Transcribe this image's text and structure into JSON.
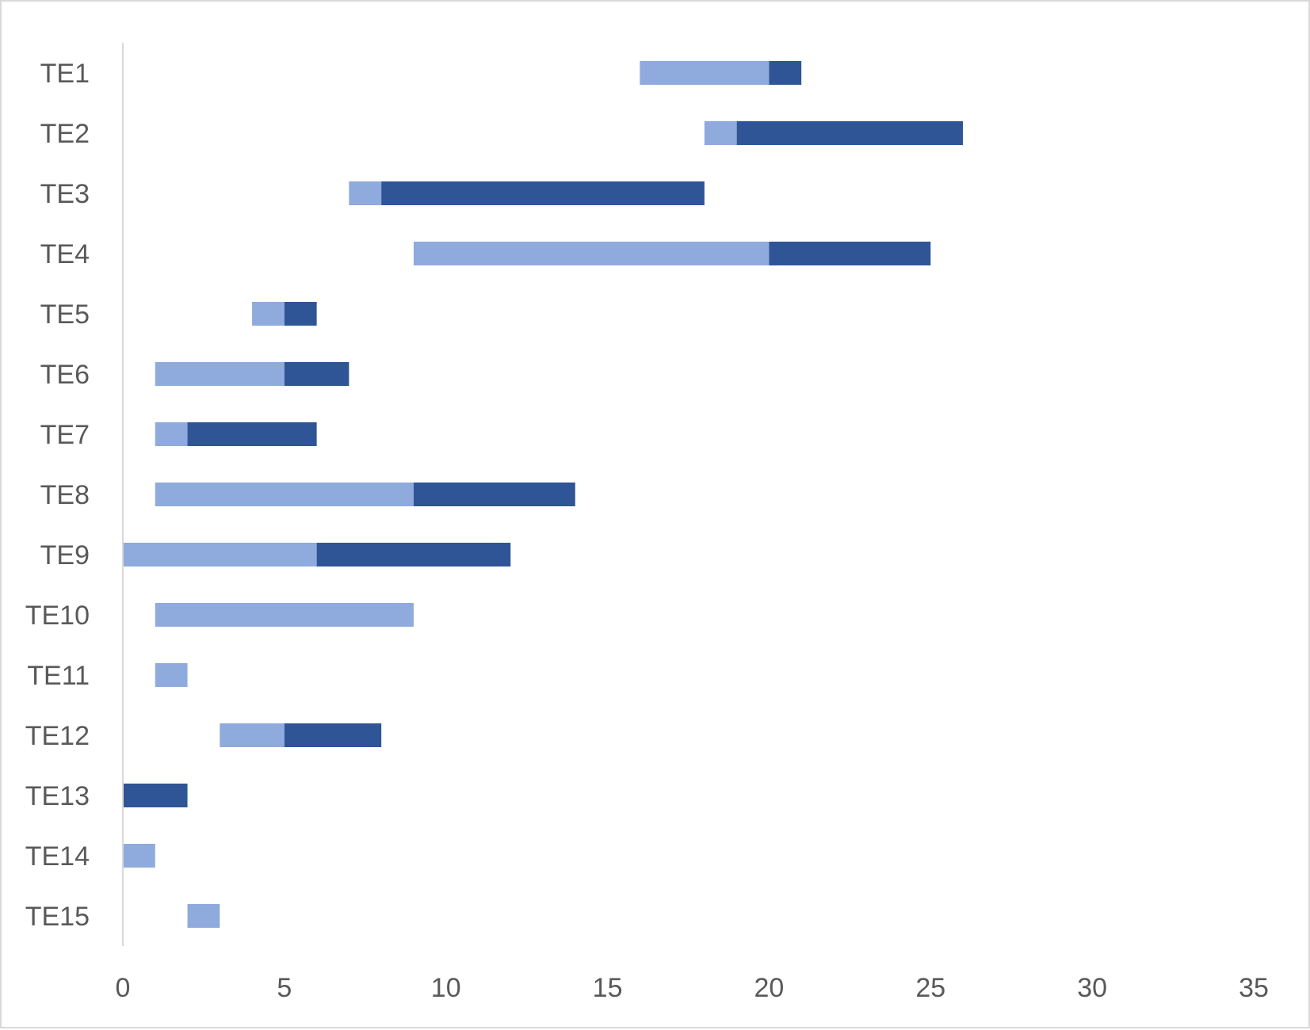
{
  "chart_data": {
    "type": "bar",
    "orientation": "horizontal",
    "stacked": true,
    "categories": [
      "TE1",
      "TE2",
      "TE3",
      "TE4",
      "TE5",
      "TE6",
      "TE7",
      "TE8",
      "TE9",
      "TE10",
      "TE11",
      "TE12",
      "TE13",
      "TE14",
      "TE15"
    ],
    "series": [
      {
        "role": "offset",
        "visible": false,
        "values": [
          16,
          18,
          7,
          9,
          4,
          1,
          1,
          1,
          0,
          1,
          1,
          3,
          0,
          0,
          2
        ]
      },
      {
        "color": "#8faadc",
        "values": [
          4,
          1,
          1,
          11,
          1,
          4,
          1,
          8,
          6,
          8,
          1,
          2,
          0,
          1,
          1
        ]
      },
      {
        "color": "#2f5597",
        "values": [
          1,
          7,
          10,
          5,
          1,
          2,
          4,
          5,
          6,
          0,
          0,
          3,
          2,
          0,
          0
        ]
      }
    ],
    "xlim": [
      0,
      35
    ],
    "xticks": [
      0,
      5,
      10,
      15,
      20,
      25,
      30,
      35
    ],
    "grid": false,
    "legend": "none",
    "title": "",
    "xlabel": "",
    "ylabel": ""
  }
}
